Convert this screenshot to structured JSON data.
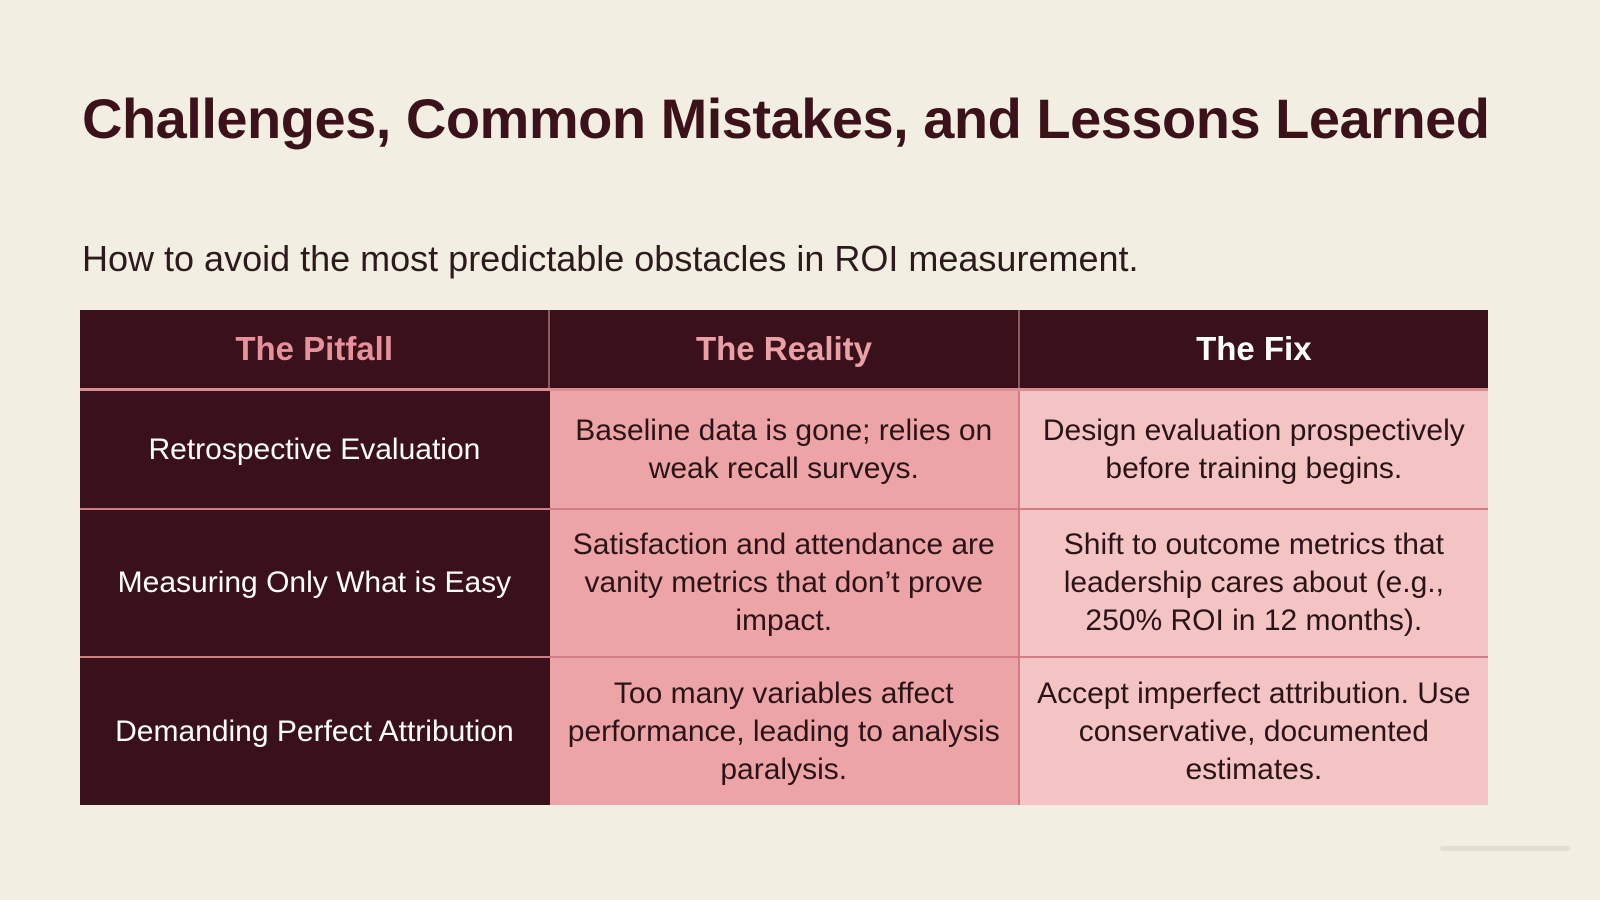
{
  "slide": {
    "title": "Challenges, Common Mistakes, and Lessons Learned",
    "subtitle": "How to avoid the most predictable obstacles in ROI measurement."
  },
  "table": {
    "headers": [
      "The Pitfall",
      "The Reality",
      "The Fix"
    ],
    "rows": [
      {
        "pitfall": "Retrospective Evaluation",
        "reality": "Baseline data is gone; relies on weak recall surveys.",
        "fix": "Design evaluation prospectively before training begins."
      },
      {
        "pitfall": "Measuring Only What is Easy",
        "reality": "Satisfaction and attendance are vanity metrics that don’t prove impact.",
        "fix": "Shift to outcome metrics that leadership cares about (e.g., 250% ROI in 12 months)."
      },
      {
        "pitfall": "Demanding Perfect Attribution",
        "reality": "Too many variables affect performance, leading to analysis paralysis.",
        "fix": "Accept imperfect attribution. Use conservative, documented estimates."
      }
    ]
  },
  "colors": {
    "background": "#f3eee2",
    "dark": "#3a111a",
    "reality": "#eda4a7",
    "fix": "#f4c4c4"
  }
}
